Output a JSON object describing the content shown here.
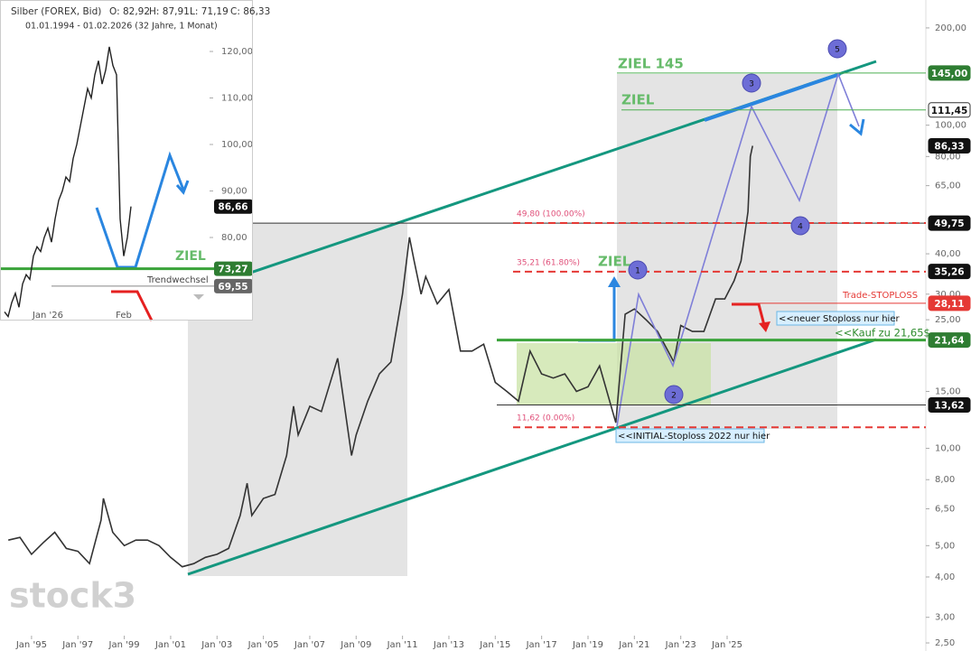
{
  "header": {
    "instrument": "Silber (FOREX, Bid)",
    "ohlc": [
      "O: 82,92",
      "H: 87,91",
      "L: 71,19",
      "C: 86,33"
    ],
    "range": "01.01.1994 - 01.02.2026 (32 Jahre, 1 Monat)"
  },
  "watermark": "stock3",
  "chart_data": [
    {
      "type": "line",
      "log_scale": true,
      "color": "#333333",
      "x": [
        1994.0,
        1994.5,
        1995.0,
        1995.5,
        1996.0,
        1996.5,
        1997.0,
        1997.5,
        1998.0,
        1998.1,
        1998.5,
        1999.0,
        1999.5,
        2000.0,
        2000.5,
        2001.0,
        2001.5,
        2002.0,
        2002.5,
        2003.0,
        2003.5,
        2004.0,
        2004.3,
        2004.5,
        2005.0,
        2005.5,
        2006.0,
        2006.3,
        2006.5,
        2007.0,
        2007.5,
        2008.2,
        2008.8,
        2009.0,
        2009.5,
        2010.0,
        2010.5,
        2011.0,
        2011.3,
        2011.5,
        2011.8,
        2012.0,
        2012.5,
        2013.0,
        2013.5,
        2014.0,
        2014.5,
        2015.0,
        2015.5,
        2016.0,
        2016.5,
        2017.0,
        2017.5,
        2018.0,
        2018.5,
        2019.0,
        2019.5,
        2020.2,
        2020.6,
        2021.0,
        2021.5,
        2022.0,
        2022.7,
        2023.0,
        2023.5,
        2024.0,
        2024.5,
        2024.9,
        2025.3,
        2025.6,
        2025.8,
        2025.9,
        2026.0,
        2026.1
      ],
      "values": [
        5.2,
        5.3,
        4.7,
        5.1,
        5.5,
        4.9,
        4.8,
        4.4,
        6.0,
        7.0,
        5.5,
        5.0,
        5.2,
        5.2,
        5.0,
        4.6,
        4.3,
        4.4,
        4.6,
        4.7,
        4.9,
        6.2,
        7.8,
        6.2,
        7.0,
        7.2,
        9.5,
        13.5,
        11,
        13.5,
        13,
        19,
        9.5,
        11,
        14,
        17,
        18.5,
        30,
        45,
        38,
        30,
        34,
        28,
        31,
        20,
        20,
        21,
        16,
        15,
        14,
        20,
        17,
        16.5,
        17,
        15,
        15.5,
        18,
        12,
        26,
        27,
        25,
        23,
        18.5,
        24,
        23,
        23,
        29,
        29,
        33,
        38,
        48,
        54,
        80,
        86.33
      ],
      "xlim": [
        1993.64,
        2033.57
      ],
      "ylim": [
        2.36,
        244
      ],
      "xticks": [
        {
          "value": 1995,
          "label": "Jan '95"
        },
        {
          "value": 1997,
          "label": "Jan '97"
        },
        {
          "value": 1999,
          "label": "Jan '99"
        },
        {
          "value": 2001,
          "label": "Jan '01"
        },
        {
          "value": 2003,
          "label": "Jan '03"
        },
        {
          "value": 2005,
          "label": "Jan '05"
        },
        {
          "value": 2007,
          "label": "Jan '07"
        },
        {
          "value": 2009,
          "label": "Jan '09"
        },
        {
          "value": 2011,
          "label": "Jan '11"
        },
        {
          "value": 2013,
          "label": "Jan '13"
        },
        {
          "value": 2015,
          "label": "Jan '15"
        },
        {
          "value": 2017,
          "label": "Jan '17"
        },
        {
          "value": 2019,
          "label": "Jan '19"
        },
        {
          "value": 2021,
          "label": "Jan '21"
        },
        {
          "value": 2023,
          "label": "Jan '23"
        },
        {
          "value": 2025,
          "label": "Jan '25"
        }
      ],
      "yticks": [
        {
          "value": 200,
          "label": "200,00"
        },
        {
          "value": 100,
          "label": "100,00"
        },
        {
          "value": 80,
          "label": "80,00"
        },
        {
          "value": 65,
          "label": "65,00"
        },
        {
          "value": 40,
          "label": "40,00"
        },
        {
          "value": 30,
          "label": "30,00"
        },
        {
          "value": 25,
          "label": "25,00"
        },
        {
          "value": 15,
          "label": "15,00"
        },
        {
          "value": 10,
          "label": "10,00"
        },
        {
          "value": 8,
          "label": "8,00"
        },
        {
          "value": 6.5,
          "label": "6,50"
        },
        {
          "value": 5,
          "label": "5,00"
        },
        {
          "value": 4,
          "label": "4,00"
        },
        {
          "value": 3,
          "label": "3,00"
        },
        {
          "value": 2.5,
          "label": "2,50"
        }
      ],
      "price_labels": [
        {
          "value": 145,
          "label": "145,00",
          "color": "#2e7d32"
        },
        {
          "value": 111.45,
          "label": "111,45",
          "color": "#ffffff"
        },
        {
          "value": 86.33,
          "label": "86,33",
          "color": "#111111"
        },
        {
          "value": 49.75,
          "label": "49,75",
          "color": "#111111"
        },
        {
          "value": 35.26,
          "label": "35,26",
          "color": "#111111"
        },
        {
          "value": 28.11,
          "label": "28,11",
          "color": "#e53935"
        },
        {
          "value": 21.64,
          "label": "21,64",
          "color": "#2e7d32"
        },
        {
          "value": 13.62,
          "label": "13,62",
          "color": "#111111"
        }
      ],
      "fib_levels": [
        {
          "value": 49.8,
          "label": "49,80 (100.00%)"
        },
        {
          "value": 35.21,
          "label": "35,21 (61.80%)"
        },
        {
          "value": 11.62,
          "label": "11,62 (0.00%)"
        }
      ],
      "annotations": [
        "ZIEL 145",
        "ZIEL",
        "ZIEL",
        "Trade-STOPLOSS",
        "<<Kauf zu 21,65$",
        "<<neuer Stoploss nur hier",
        "<<INITIAL-Stoploss 2022 nur hier"
      ],
      "markers": [
        "1",
        "2",
        "3",
        "4",
        "5"
      ]
    },
    {
      "type": "line",
      "color": "#222222",
      "categories": [
        null,
        null,
        null,
        null,
        null,
        null,
        null,
        null,
        null,
        null,
        null,
        null,
        "Jan '26",
        null,
        null,
        null,
        null,
        null,
        null,
        null,
        null,
        null,
        null,
        null,
        null,
        null,
        null,
        null,
        null,
        null,
        null,
        null,
        null,
        "Feb",
        null,
        null
      ],
      "values": [
        64,
        63,
        66,
        68,
        65,
        70,
        72,
        71,
        76,
        78,
        77,
        80,
        82,
        79,
        84,
        88,
        90,
        93,
        92,
        97,
        100,
        104,
        108,
        112,
        110,
        115,
        118,
        113,
        116,
        121,
        117,
        115,
        84,
        76,
        80,
        86.66
      ],
      "ylim": [
        62.14,
        131.07
      ],
      "yticks": [
        {
          "value": 120,
          "label": "120,00"
        },
        {
          "value": 110,
          "label": "110,00"
        },
        {
          "value": 100,
          "label": "100,00"
        },
        {
          "value": 90,
          "label": "90,00"
        },
        {
          "value": 80,
          "label": "80,00"
        }
      ],
      "price_labels": [
        {
          "value": 86.66,
          "label": "86,66",
          "color": "#111111"
        },
        {
          "value": 73.27,
          "label": "73,27",
          "color": "#2e7d32"
        },
        {
          "value": 69.55,
          "label": "69,55",
          "color": "#666666"
        }
      ],
      "annotations": [
        "ZIEL",
        "Trendwechsel"
      ]
    }
  ]
}
